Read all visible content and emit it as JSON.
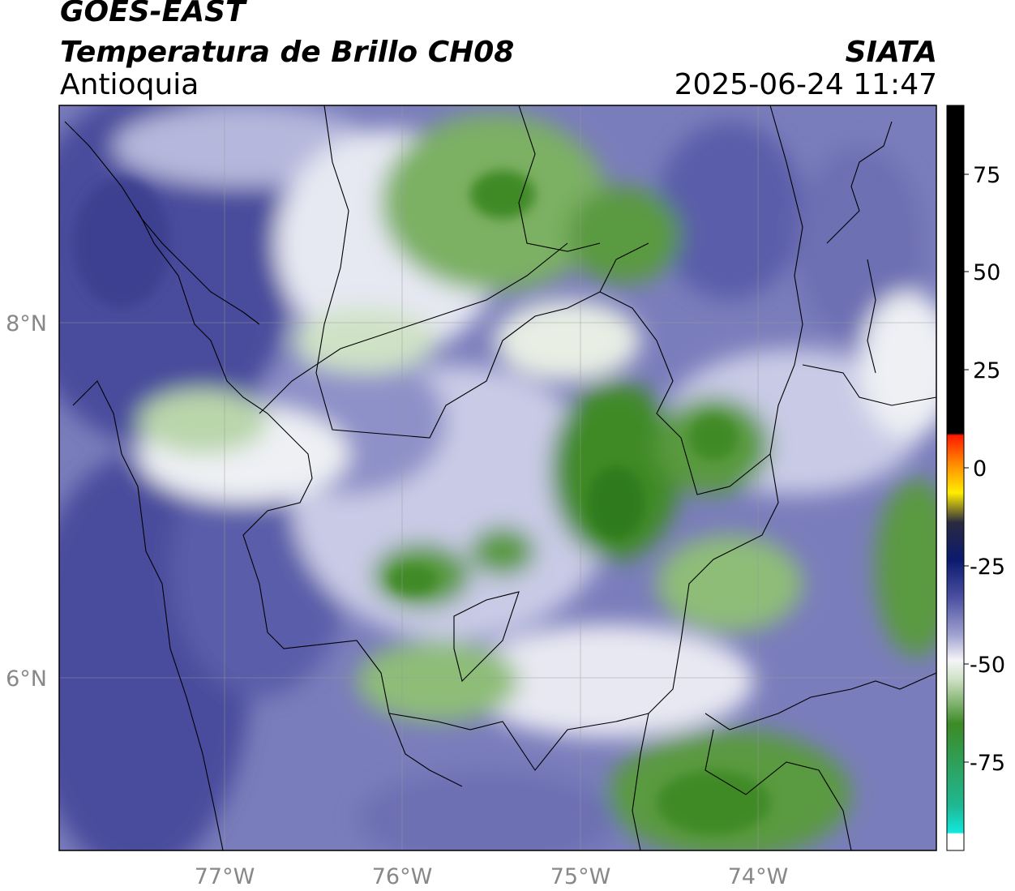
{
  "header": {
    "satellite": "GOES-EAST",
    "product": "Temperatura de Brillo CH08",
    "region": "Antioquia",
    "organization": "SIATA",
    "datetime": "2025-06-24 11:47"
  },
  "map": {
    "lon_ticks": [
      "77°W",
      "76°W",
      "75°W",
      "74°W"
    ],
    "lat_ticks": [
      "8°N",
      "6°N"
    ],
    "extent": {
      "lon_min": -77.95,
      "lon_max": -73.0,
      "lat_min": 5.02,
      "lat_max": 9.23
    }
  },
  "colorbar": {
    "ticks": [
      "75",
      "50",
      "25",
      "0",
      "-25",
      "-50",
      "-75"
    ],
    "range": [
      -95,
      90
    ],
    "colors": {
      "hot": "#000000",
      "red": "#ff2a00",
      "orange": "#ff9900",
      "yellow": "#ffff00",
      "dark_blue": "#0b1a6e",
      "violet": "#4b4fa0",
      "white": "#f5f5f8",
      "green": "#3d8a26",
      "cyan": "#10e8dc"
    }
  },
  "colors": {
    "violet_dark": "#4a4c9c",
    "violet_mid": "#6d70b3",
    "lavender": "#b5b8dc",
    "white": "#f4f4f7",
    "pale_green": "#cfe2c6",
    "green_mid": "#7bb063",
    "green_dark": "#3f8a28"
  }
}
